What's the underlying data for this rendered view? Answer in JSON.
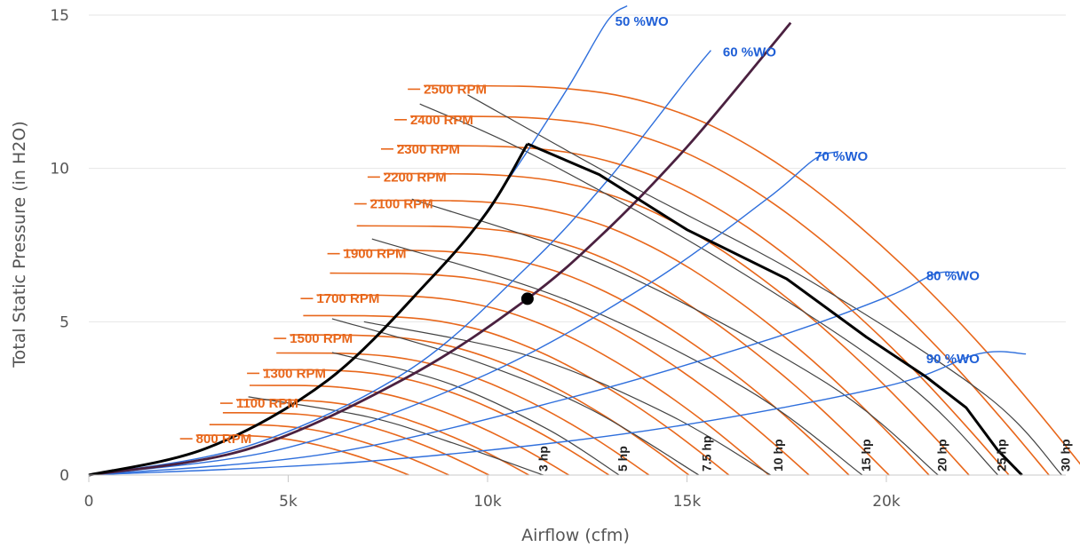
{
  "chart_data": {
    "type": "line",
    "title": "",
    "xlabel": "Airflow (cfm)",
    "ylabel": "Total Static Pressure (in H2O)",
    "xlim": [
      0,
      24500
    ],
    "ylim": [
      0,
      15
    ],
    "x_ticks": [
      {
        "value": 0,
        "label": "0"
      },
      {
        "value": 5000,
        "label": "5k"
      },
      {
        "value": 10000,
        "label": "10k"
      },
      {
        "value": 15000,
        "label": "15k"
      },
      {
        "value": 20000,
        "label": "20k"
      }
    ],
    "y_ticks": [
      {
        "value": 0,
        "label": "0"
      },
      {
        "value": 5,
        "label": "5"
      },
      {
        "value": 10,
        "label": "10"
      },
      {
        "value": 15,
        "label": "15"
      }
    ],
    "grid": "horizontal",
    "colors": {
      "rpm": "#e8671b",
      "wo": "#2f6fdc",
      "hp": "#444444",
      "envelope": "#000000",
      "system": "#4b2140",
      "grid": "#e6e6e6"
    },
    "rpm_curves": [
      {
        "rpm": 800,
        "label": "800 RPM",
        "labeled": true
      },
      {
        "rpm": 900,
        "label": "",
        "labeled": false
      },
      {
        "rpm": 1000,
        "label": "",
        "labeled": false
      },
      {
        "rpm": 1100,
        "label": "1100 RPM",
        "labeled": true
      },
      {
        "rpm": 1200,
        "label": "",
        "labeled": false
      },
      {
        "rpm": 1300,
        "label": "1300 RPM",
        "labeled": true
      },
      {
        "rpm": 1400,
        "label": "",
        "labeled": false
      },
      {
        "rpm": 1500,
        "label": "1500 RPM",
        "labeled": true
      },
      {
        "rpm": 1600,
        "label": "",
        "labeled": false
      },
      {
        "rpm": 1700,
        "label": "1700 RPM",
        "labeled": true
      },
      {
        "rpm": 1800,
        "label": "",
        "labeled": false
      },
      {
        "rpm": 1900,
        "label": "1900 RPM",
        "labeled": true
      },
      {
        "rpm": 2000,
        "label": "",
        "labeled": false
      },
      {
        "rpm": 2100,
        "label": "2100 RPM",
        "labeled": true
      },
      {
        "rpm": 2200,
        "label": "2200 RPM",
        "labeled": true
      },
      {
        "rpm": 2300,
        "label": "2300 RPM",
        "labeled": true
      },
      {
        "rpm": 2400,
        "label": "2400 RPM",
        "labeled": true
      },
      {
        "rpm": 2500,
        "label": "2500 RPM",
        "labeled": true
      }
    ],
    "wo_curves": [
      {
        "label": "50 %WO",
        "points": [
          [
            0,
            0
          ],
          [
            3000,
            0.9
          ],
          [
            6000,
            3.1
          ],
          [
            9000,
            7.0
          ],
          [
            10500,
            9.6
          ],
          [
            12000,
            12.6
          ],
          [
            13000,
            14.8
          ],
          [
            13500,
            15.3
          ]
        ],
        "label_at": [
          13200,
          14.8
        ]
      },
      {
        "label": "60 %WO",
        "points": [
          [
            0,
            0
          ],
          [
            4000,
            0.95
          ],
          [
            8000,
            3.4
          ],
          [
            11000,
            6.8
          ],
          [
            13000,
            9.6
          ],
          [
            15000,
            12.9
          ],
          [
            15600,
            13.85
          ]
        ],
        "label_at": [
          15900,
          13.8
        ]
      },
      {
        "label": "70 %WO",
        "points": [
          [
            0,
            0
          ],
          [
            5000,
            0.9
          ],
          [
            10000,
            3.3
          ],
          [
            14000,
            6.2
          ],
          [
            17000,
            9.0
          ],
          [
            18200,
            10.3
          ],
          [
            18800,
            10.55
          ]
        ],
        "label_at": [
          18200,
          10.4
        ]
      },
      {
        "label": "80 %WO",
        "points": [
          [
            0,
            0
          ],
          [
            6000,
            0.7
          ],
          [
            12000,
            2.5
          ],
          [
            17000,
            4.4
          ],
          [
            20000,
            5.8
          ],
          [
            21200,
            6.55
          ],
          [
            21800,
            6.6
          ]
        ],
        "label_at": [
          21000,
          6.5
        ]
      },
      {
        "label": "90 %WO",
        "points": [
          [
            0,
            0
          ],
          [
            7000,
            0.45
          ],
          [
            14000,
            1.45
          ],
          [
            20000,
            2.9
          ],
          [
            22300,
            3.95
          ],
          [
            23500,
            3.95
          ]
        ],
        "label_at": [
          21000,
          3.8
        ]
      }
    ],
    "envelope_curve": {
      "points": [
        [
          0,
          0
        ],
        [
          3000,
          0.9
        ],
        [
          6000,
          3.1
        ],
        [
          8500,
          6.3
        ],
        [
          10000,
          8.6
        ],
        [
          11000,
          10.8
        ],
        [
          12800,
          9.8
        ],
        [
          15000,
          8.0
        ],
        [
          17500,
          6.4
        ],
        [
          19500,
          4.5
        ],
        [
          21000,
          3.2
        ],
        [
          22000,
          2.2
        ],
        [
          22800,
          0.8
        ],
        [
          23400,
          0
        ]
      ]
    },
    "system_curve": {
      "points": [
        [
          0,
          0
        ],
        [
          4000,
          0.85
        ],
        [
          8000,
          3.2
        ],
        [
          11000,
          5.75
        ],
        [
          13000,
          8.0
        ],
        [
          15000,
          10.7
        ],
        [
          17000,
          13.8
        ],
        [
          17600,
          14.75
        ]
      ]
    },
    "operating_point": {
      "x": 11000,
      "y": 5.75
    },
    "hp_curves": [
      {
        "label": "3 hp",
        "label_x": 11500,
        "points": [
          [
            4000,
            2.55
          ],
          [
            7000,
            1.9
          ],
          [
            9000,
            1.1
          ],
          [
            11400,
            0
          ]
        ]
      },
      {
        "label": "5 hp",
        "label_x": 13500,
        "points": [
          [
            6100,
            4.0
          ],
          [
            9000,
            3.0
          ],
          [
            11500,
            1.5
          ],
          [
            13300,
            0
          ]
        ]
      },
      {
        "label": "7.5 hp",
        "label_x": 15600,
        "points": [
          [
            6100,
            5.1
          ],
          [
            9500,
            3.8
          ],
          [
            12500,
            2.2
          ],
          [
            15300,
            0
          ]
        ]
      },
      {
        "label": "10 hp",
        "label_x": 17400,
        "points": [
          [
            6900,
            5.0
          ],
          [
            11000,
            3.9
          ],
          [
            14500,
            2.0
          ],
          [
            17100,
            0
          ]
        ]
      },
      {
        "label": "15 hp",
        "label_x": 19600,
        "points": [
          [
            7100,
            7.7
          ],
          [
            12000,
            5.7
          ],
          [
            16500,
            2.8
          ],
          [
            19400,
            0
          ]
        ]
      },
      {
        "label": "20 hp",
        "label_x": 21500,
        "points": [
          [
            8100,
            9.0
          ],
          [
            13000,
            6.8
          ],
          [
            18500,
            3.0
          ],
          [
            21300,
            0
          ]
        ]
      },
      {
        "label": "25 hp",
        "label_x": 23000,
        "points": [
          [
            8300,
            12.1
          ],
          [
            11200,
            10.4
          ],
          [
            16000,
            6.9
          ],
          [
            20500,
            3.0
          ],
          [
            22800,
            0
          ]
        ]
      },
      {
        "label": "30 hp",
        "label_x": 24600,
        "points": [
          [
            9500,
            12.4
          ],
          [
            13500,
            9.5
          ],
          [
            18000,
            6.4
          ],
          [
            22500,
            2.6
          ],
          [
            24400,
            0
          ]
        ]
      }
    ]
  }
}
